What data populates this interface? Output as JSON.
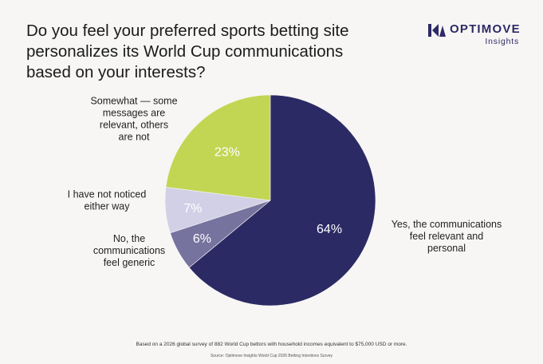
{
  "title_lines": [
    "Do you feel your preferred sports betting site",
    "personalizes its World Cup communications",
    "based on your interests?"
  ],
  "brand": {
    "name": "OPTIMOVE",
    "subtitle": "Insights",
    "color": "#2d2a66"
  },
  "footnote": "Based on a 2026 global survey of 882 World Cup bettors with household incomes equivalent to $75,000 USD or more.",
  "source": "Source: Optimove Insights World Cup 2026 Betting Intentions Survey",
  "chart_data": {
    "type": "pie",
    "title": "Do you feel your preferred sports betting site personalizes its World Cup communications based on your interests?",
    "slices": [
      {
        "value": 64,
        "value_label": "64%",
        "label_lines": [
          "Yes, the communications",
          "feel relevant and",
          "personal"
        ],
        "color": "#2b2a64"
      },
      {
        "value": 6,
        "value_label": "6%",
        "label_lines": [
          "No, the",
          "communications",
          "feel generic"
        ],
        "color": "#77739f"
      },
      {
        "value": 7,
        "value_label": "7%",
        "label_lines": [
          "I have not noticed",
          "either way"
        ],
        "color": "#d2d0e6"
      },
      {
        "value": 23,
        "value_label": "23%",
        "label_lines": [
          "Somewhat — some",
          "messages are",
          "relevant, others",
          "are not"
        ],
        "color": "#c2d653"
      }
    ]
  }
}
